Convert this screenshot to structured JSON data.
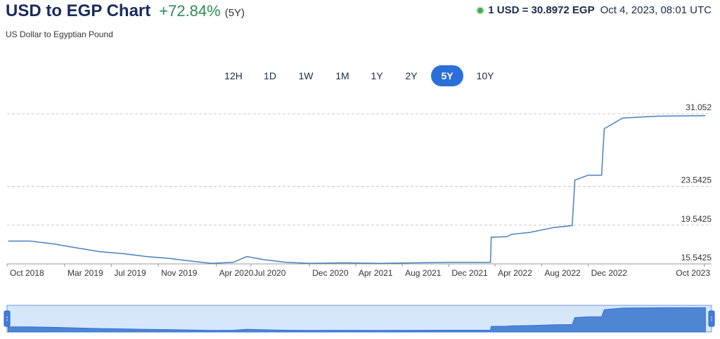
{
  "header": {
    "title": "USD to EGP Chart",
    "change": "+72.84%",
    "period": "(5Y)",
    "subtitle": "US Dollar to Egyptian Pound",
    "rate": "1 USD = 30.8972 EGP",
    "timestamp": "Oct 4, 2023, 08:01 UTC"
  },
  "tabs": [
    {
      "label": "12H",
      "active": false
    },
    {
      "label": "1D",
      "active": false
    },
    {
      "label": "1W",
      "active": false
    },
    {
      "label": "1M",
      "active": false
    },
    {
      "label": "1Y",
      "active": false
    },
    {
      "label": "2Y",
      "active": false
    },
    {
      "label": "5Y",
      "active": true
    },
    {
      "label": "10Y",
      "active": false
    }
  ],
  "colors": {
    "line": "#4a7fc1",
    "navigator_fill": "#d6e6fb",
    "navigator_area": "#4f86d4",
    "active_tab": "#2c6fd9",
    "change_positive": "#2e8b57"
  },
  "chart_data": {
    "type": "line",
    "title": "",
    "xlabel": "",
    "ylabel": "",
    "ylim": [
      15.5425,
      31.052
    ],
    "y_ticks": [
      15.5425,
      19.5425,
      23.5425,
      31.052
    ],
    "y_tick_labels": [
      "15.5425",
      "19.5425",
      "23.5425",
      "31.052"
    ],
    "x_ticks": [
      "2018-10-01",
      "2019-03-01",
      "2019-07-01",
      "2019-11-01",
      "2020-04-01",
      "2020-07-01",
      "2020-12-01",
      "2021-04-01",
      "2021-08-01",
      "2021-12-01",
      "2022-04-01",
      "2022-08-01",
      "2022-12-01",
      "2023-10-01"
    ],
    "x_tick_labels": [
      "Oct 2018",
      "Mar 2019",
      "Jul 2019",
      "Nov 2019",
      "Apr 2020",
      "Jul 2020",
      "Dec 2020",
      "Apr 2021",
      "Aug 2021",
      "Dec 2021",
      "Apr 2022",
      "Aug 2022",
      "Dec 2022",
      "Oct 2023"
    ],
    "grid": "horizontal-dashed",
    "navigator": true,
    "series": [
      {
        "x": [
          "2018-10-04",
          "2018-12-01",
          "2019-02-01",
          "2019-04-01",
          "2019-06-01",
          "2019-08-01",
          "2019-10-01",
          "2019-12-01",
          "2020-02-01",
          "2020-03-20",
          "2020-05-15",
          "2020-06-20",
          "2020-08-01",
          "2020-10-01",
          "2020-12-01",
          "2021-03-01",
          "2021-06-01",
          "2021-09-01",
          "2021-12-01",
          "2022-03-20",
          "2022-03-22",
          "2022-05-01",
          "2022-05-15",
          "2022-07-01",
          "2022-09-01",
          "2022-10-20",
          "2022-10-27",
          "2022-12-01",
          "2023-01-05",
          "2023-01-12",
          "2023-03-01",
          "2023-06-01",
          "2023-10-04"
        ],
        "y": [
          17.9,
          17.9,
          17.6,
          17.2,
          16.8,
          16.6,
          16.3,
          16.1,
          15.8,
          15.6,
          15.7,
          16.3,
          16.0,
          15.7,
          15.6,
          15.65,
          15.6,
          15.65,
          15.7,
          15.7,
          18.3,
          18.35,
          18.6,
          18.8,
          19.3,
          19.5,
          24.2,
          24.7,
          24.7,
          29.5,
          30.6,
          30.8,
          30.85
        ]
      }
    ]
  }
}
